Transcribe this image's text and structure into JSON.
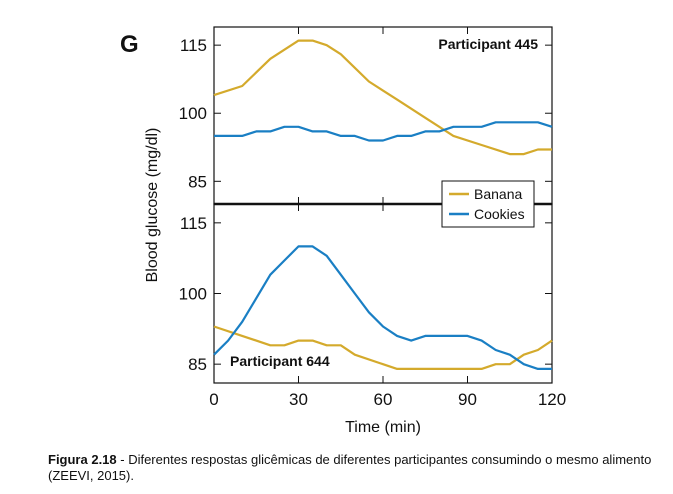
{
  "chart_data": {
    "type": "line",
    "panel_label": "G",
    "xlabel": "Time (min)",
    "ylabel": "Blood glucose (mg/dl)",
    "xlim": [
      0,
      120
    ],
    "x_ticks": [
      0,
      30,
      60,
      90,
      120
    ],
    "y_ticks": [
      85,
      100,
      115
    ],
    "colors": {
      "Banana": "#d4aa2c",
      "Cookies": "#1a7fc4"
    },
    "legend": [
      "Banana",
      "Cookies"
    ],
    "legend_position": "lower-right of top panel",
    "panels": [
      {
        "id": "top",
        "title": "Participant 445",
        "title_position": "top-right",
        "ylim": [
          80,
          119
        ],
        "series": [
          {
            "name": "Banana",
            "points": [
              [
                0,
                104
              ],
              [
                10,
                106
              ],
              [
                20,
                112
              ],
              [
                30,
                116
              ],
              [
                35,
                116
              ],
              [
                40,
                115
              ],
              [
                45,
                113
              ],
              [
                55,
                107
              ],
              [
                65,
                103
              ],
              [
                75,
                99
              ],
              [
                85,
                95
              ],
              [
                95,
                93
              ],
              [
                105,
                91
              ],
              [
                110,
                91
              ],
              [
                115,
                92
              ],
              [
                120,
                92
              ]
            ]
          },
          {
            "name": "Cookies",
            "points": [
              [
                0,
                95
              ],
              [
                10,
                95
              ],
              [
                15,
                96
              ],
              [
                20,
                96
              ],
              [
                25,
                97
              ],
              [
                30,
                97
              ],
              [
                35,
                96
              ],
              [
                40,
                96
              ],
              [
                45,
                95
              ],
              [
                50,
                95
              ],
              [
                55,
                94
              ],
              [
                60,
                94
              ],
              [
                65,
                95
              ],
              [
                70,
                95
              ],
              [
                75,
                96
              ],
              [
                80,
                96
              ],
              [
                85,
                97
              ],
              [
                95,
                97
              ],
              [
                100,
                98
              ],
              [
                115,
                98
              ],
              [
                120,
                97
              ]
            ]
          }
        ]
      },
      {
        "id": "bottom",
        "title": "Participant 644",
        "title_position": "bottom-left",
        "ylim": [
          81,
          119
        ],
        "series": [
          {
            "name": "Banana",
            "points": [
              [
                0,
                93
              ],
              [
                10,
                91
              ],
              [
                20,
                89
              ],
              [
                25,
                89
              ],
              [
                30,
                90
              ],
              [
                35,
                90
              ],
              [
                40,
                89
              ],
              [
                45,
                89
              ],
              [
                50,
                87
              ],
              [
                60,
                85
              ],
              [
                65,
                84
              ],
              [
                75,
                84
              ],
              [
                90,
                84
              ],
              [
                95,
                84
              ],
              [
                100,
                85
              ],
              [
                105,
                85
              ],
              [
                110,
                87
              ],
              [
                115,
                88
              ],
              [
                120,
                90
              ]
            ]
          },
          {
            "name": "Cookies",
            "points": [
              [
                0,
                87
              ],
              [
                5,
                90
              ],
              [
                10,
                94
              ],
              [
                15,
                99
              ],
              [
                20,
                104
              ],
              [
                25,
                107
              ],
              [
                30,
                110
              ],
              [
                35,
                110
              ],
              [
                40,
                108
              ],
              [
                45,
                104
              ],
              [
                50,
                100
              ],
              [
                55,
                96
              ],
              [
                60,
                93
              ],
              [
                65,
                91
              ],
              [
                70,
                90
              ],
              [
                75,
                91
              ],
              [
                80,
                91
              ],
              [
                90,
                91
              ],
              [
                95,
                90
              ],
              [
                100,
                88
              ],
              [
                105,
                87
              ],
              [
                110,
                85
              ],
              [
                115,
                84
              ],
              [
                120,
                84
              ]
            ]
          }
        ]
      }
    ]
  },
  "caption": {
    "label": "Figura 2.18",
    "text": " - Diferentes respostas glicêmicas de diferentes participantes consumindo o mesmo alimento (ZEEVI, 2015)."
  }
}
